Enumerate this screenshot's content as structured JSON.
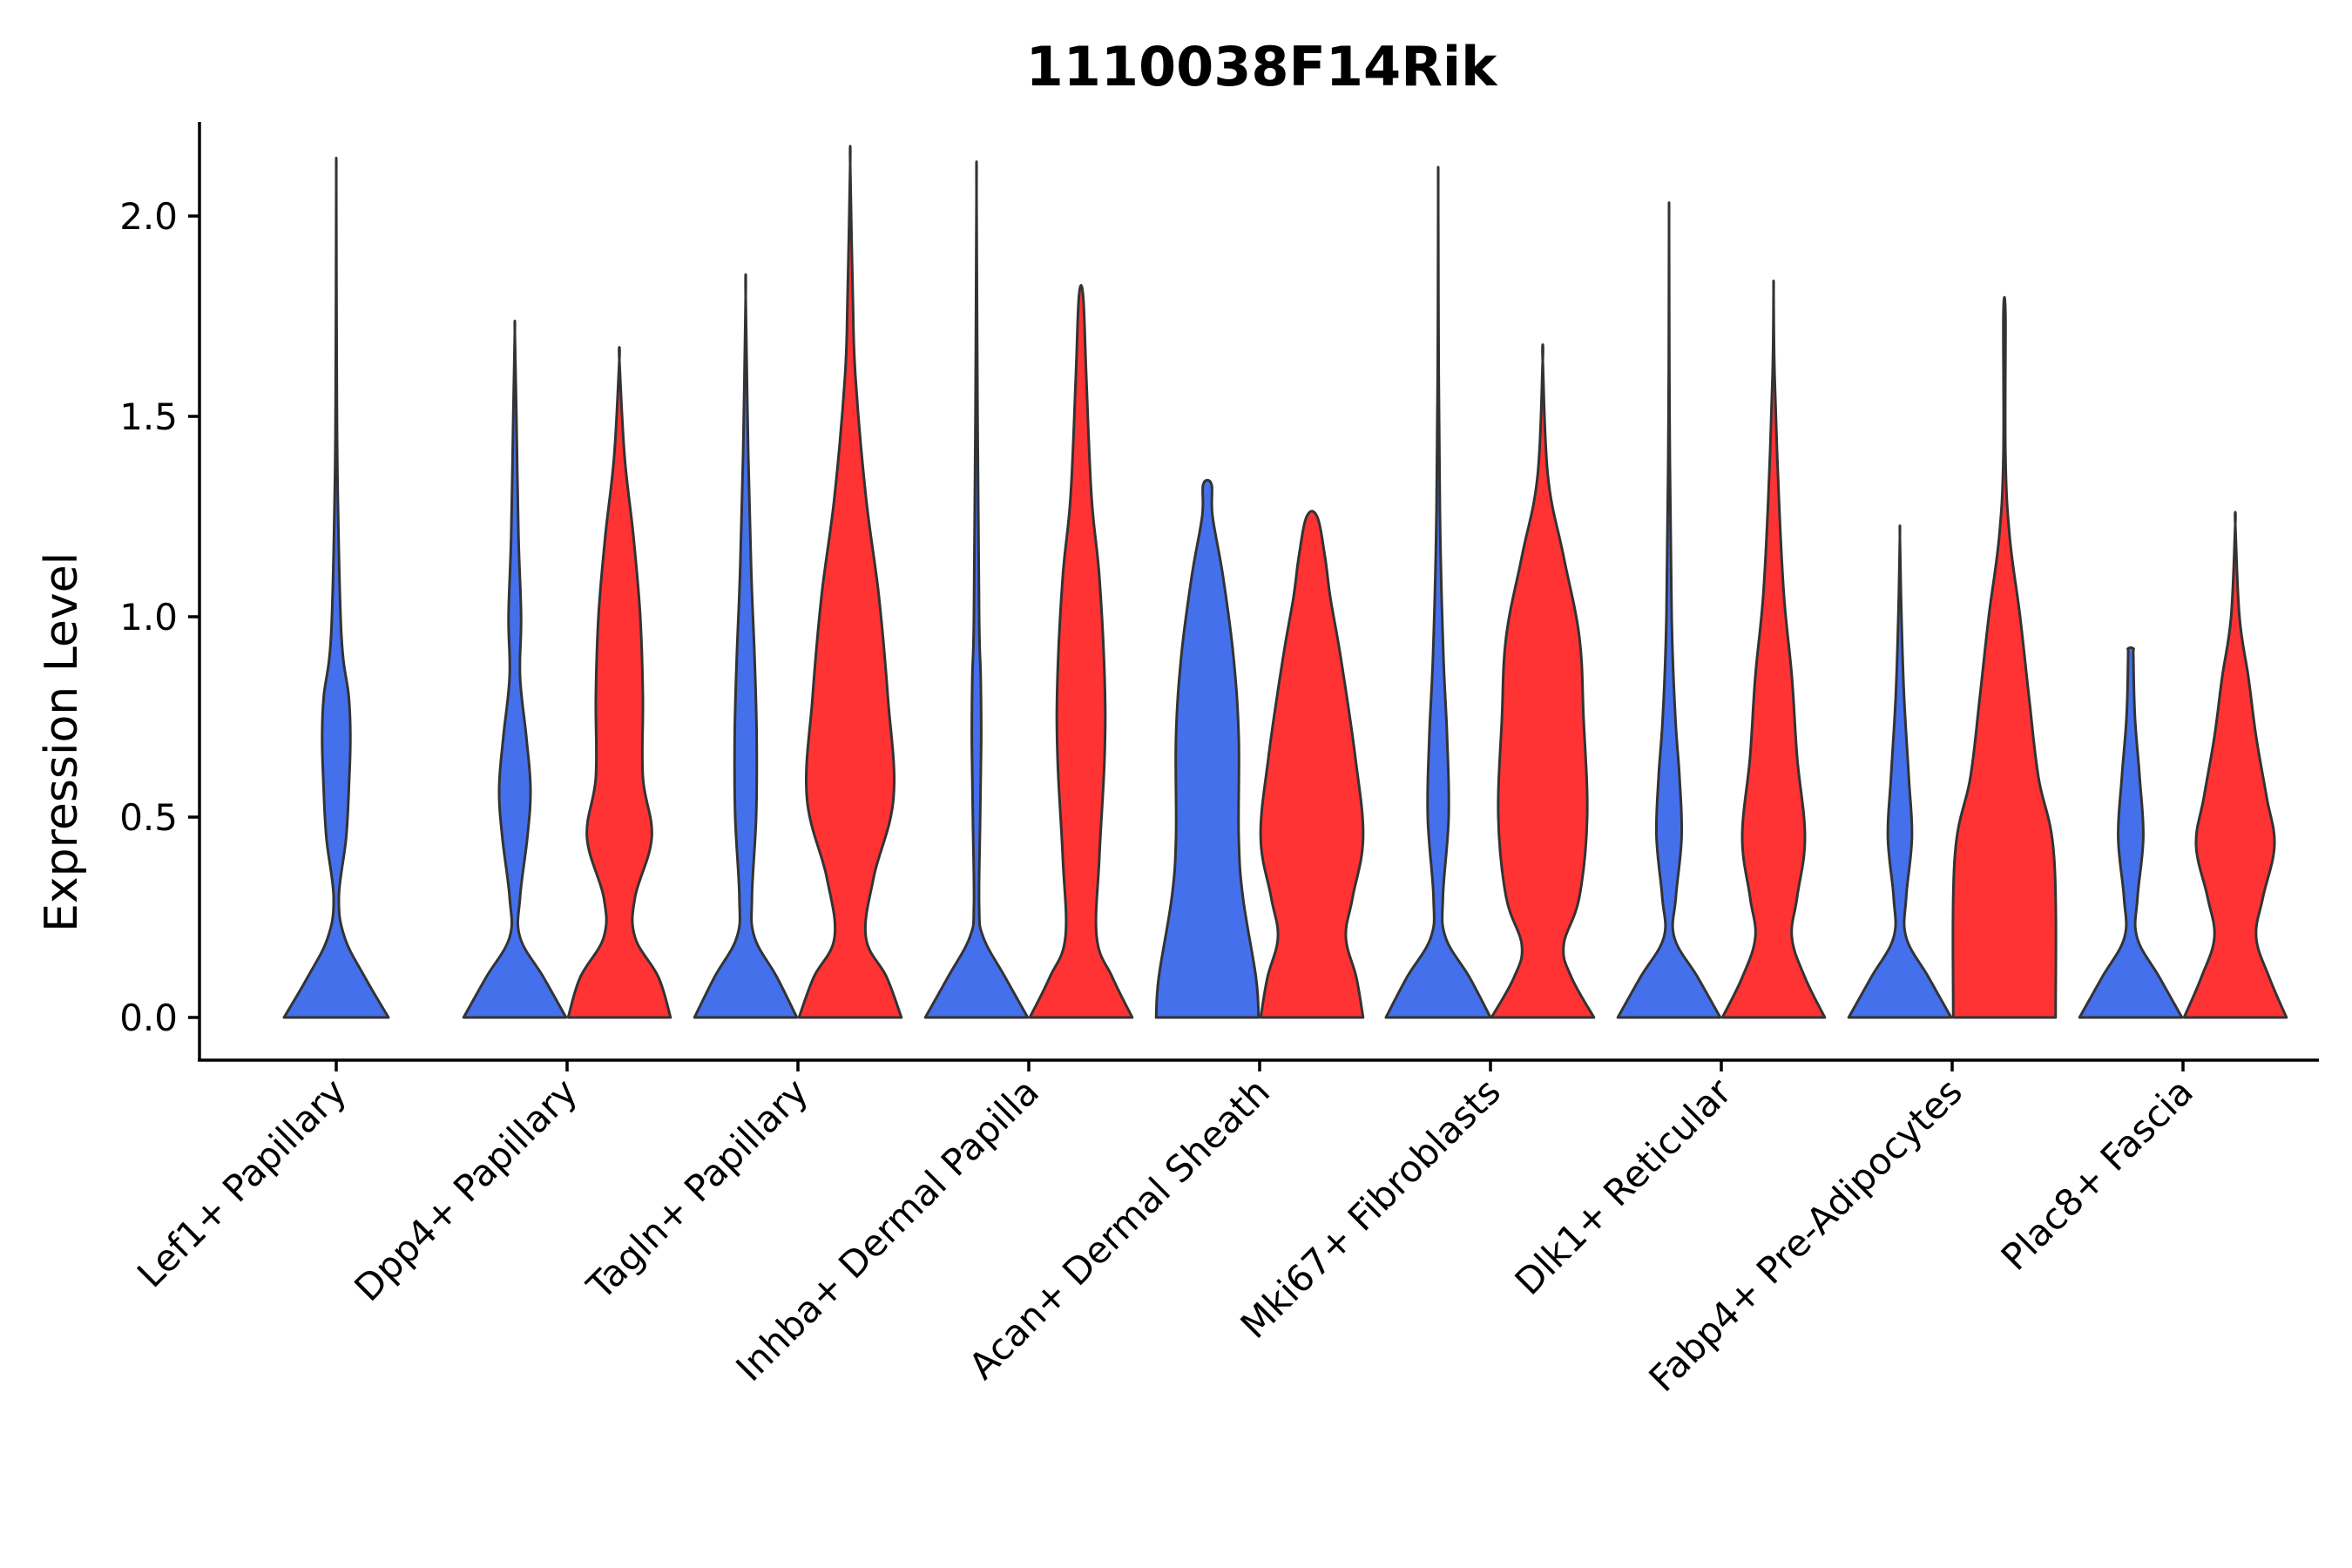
{
  "chart_data": {
    "type": "violin",
    "title": "1110038F14Rik",
    "xlabel": "",
    "ylabel": "Expression Level",
    "ylim": [
      -0.11,
      2.24
    ],
    "yticks": [
      "0.0",
      "0.5",
      "1.0",
      "1.5",
      "2.0"
    ],
    "grid": false,
    "legend": "none",
    "categories": [
      "Lef1+ Papillary",
      "Dpp4+ Papillary",
      "Tagln+ Papillary",
      "Inhba+ Dermal Papilla",
      "Acan+ Dermal Sheath",
      "Mki67+ Fibroblasts",
      "Dlk1+ Reticular",
      "Fabp4+ Pre-Adipocytes",
      "Plac8+ Fascia"
    ],
    "series": [
      {
        "color": "#4570EB",
        "violins": [
          {
            "category": "Lef1+ Papillary",
            "max": 2.08,
            "profile": [
              [
                0,
                1.0
              ],
              [
                0.1,
                0.55
              ],
              [
                0.2,
                0.16
              ],
              [
                0.3,
                0.05
              ],
              [
                0.45,
                0.19
              ],
              [
                0.6,
                0.25
              ],
              [
                0.7,
                0.27
              ],
              [
                0.8,
                0.24
              ],
              [
                0.95,
                0.1
              ],
              [
                1.3,
                0.03
              ],
              [
                1.6,
                0.01
              ],
              [
                2.08,
                0.0
              ]
            ]
          },
          {
            "category": "Dpp4+ Papillary",
            "max": 1.71,
            "profile": [
              [
                0,
                0.98
              ],
              [
                0.1,
                0.55
              ],
              [
                0.2,
                0.1
              ],
              [
                0.3,
                0.1
              ],
              [
                0.45,
                0.24
              ],
              [
                0.57,
                0.3
              ],
              [
                0.7,
                0.22
              ],
              [
                0.85,
                0.1
              ],
              [
                1.0,
                0.12
              ],
              [
                1.2,
                0.07
              ],
              [
                1.5,
                0.03
              ],
              [
                1.71,
                0.0
              ]
            ]
          },
          {
            "category": "Tagln+ Papillary",
            "max": 1.8,
            "profile": [
              [
                0,
                0.98
              ],
              [
                0.1,
                0.6
              ],
              [
                0.2,
                0.17
              ],
              [
                0.3,
                0.12
              ],
              [
                0.5,
                0.2
              ],
              [
                0.7,
                0.21
              ],
              [
                0.9,
                0.17
              ],
              [
                1.1,
                0.11
              ],
              [
                1.4,
                0.05
              ],
              [
                1.8,
                0.0
              ]
            ]
          },
          {
            "category": "Inhba+ Dermal Papilla",
            "max": 2.06,
            "profile": [
              [
                0,
                0.98
              ],
              [
                0.1,
                0.55
              ],
              [
                0.2,
                0.13
              ],
              [
                0.28,
                0.05
              ],
              [
                0.5,
                0.07
              ],
              [
                0.7,
                0.09
              ],
              [
                0.85,
                0.08
              ],
              [
                1.0,
                0.05
              ],
              [
                1.5,
                0.02
              ],
              [
                2.06,
                0.0
              ]
            ]
          },
          {
            "category": "Acan+ Dermal Sheath",
            "max": 1.33,
            "profile": [
              [
                0,
                0.98
              ],
              [
                0.1,
                0.93
              ],
              [
                0.3,
                0.68
              ],
              [
                0.45,
                0.6
              ],
              [
                0.7,
                0.6
              ],
              [
                0.9,
                0.5
              ],
              [
                1.1,
                0.3
              ],
              [
                1.25,
                0.1
              ],
              [
                1.33,
                0.08
              ]
            ]
          },
          {
            "category": "Mki67+ Fibroblasts",
            "max": 2.06,
            "profile": [
              [
                0,
                1.0
              ],
              [
                0.1,
                0.6
              ],
              [
                0.2,
                0.14
              ],
              [
                0.3,
                0.09
              ],
              [
                0.5,
                0.2
              ],
              [
                0.7,
                0.17
              ],
              [
                0.9,
                0.1
              ],
              [
                1.2,
                0.04
              ],
              [
                1.6,
                0.01
              ],
              [
                2.06,
                0.0
              ]
            ]
          },
          {
            "category": "Dlk1+ Reticular",
            "max": 1.97,
            "profile": [
              [
                0,
                0.98
              ],
              [
                0.1,
                0.55
              ],
              [
                0.2,
                0.1
              ],
              [
                0.3,
                0.13
              ],
              [
                0.45,
                0.24
              ],
              [
                0.6,
                0.2
              ],
              [
                0.75,
                0.12
              ],
              [
                1.0,
                0.05
              ],
              [
                1.5,
                0.01
              ],
              [
                1.97,
                0.0
              ]
            ]
          },
          {
            "category": "Fabp4+ Pre-Adipocytes",
            "max": 1.2,
            "profile": [
              [
                0,
                0.98
              ],
              [
                0.1,
                0.55
              ],
              [
                0.2,
                0.12
              ],
              [
                0.3,
                0.12
              ],
              [
                0.45,
                0.23
              ],
              [
                0.6,
                0.17
              ],
              [
                0.8,
                0.08
              ],
              [
                1.0,
                0.03
              ],
              [
                1.2,
                0.0
              ]
            ]
          },
          {
            "category": "Plac8+ Fascia",
            "max": 0.92,
            "profile": [
              [
                0,
                0.98
              ],
              [
                0.1,
                0.55
              ],
              [
                0.2,
                0.12
              ],
              [
                0.3,
                0.13
              ],
              [
                0.45,
                0.24
              ],
              [
                0.6,
                0.17
              ],
              [
                0.75,
                0.08
              ],
              [
                0.9,
                0.05
              ],
              [
                0.92,
                0.05
              ]
            ]
          }
        ]
      },
      {
        "color": "#FF3333",
        "violins": [
          {
            "category": "Dpp4+ Papillary",
            "max": 1.64,
            "profile": [
              [
                0,
                0.98
              ],
              [
                0.1,
                0.75
              ],
              [
                0.2,
                0.3
              ],
              [
                0.3,
                0.3
              ],
              [
                0.45,
                0.62
              ],
              [
                0.6,
                0.45
              ],
              [
                0.8,
                0.45
              ],
              [
                1.0,
                0.4
              ],
              [
                1.2,
                0.27
              ],
              [
                1.4,
                0.1
              ],
              [
                1.64,
                0.0
              ]
            ]
          },
          {
            "category": "Tagln+ Papillary",
            "max": 2.13,
            "profile": [
              [
                0,
                0.98
              ],
              [
                0.1,
                0.7
              ],
              [
                0.2,
                0.3
              ],
              [
                0.35,
                0.45
              ],
              [
                0.55,
                0.83
              ],
              [
                0.8,
                0.72
              ],
              [
                1.05,
                0.55
              ],
              [
                1.3,
                0.3
              ],
              [
                1.6,
                0.1
              ],
              [
                1.8,
                0.05
              ],
              [
                2.13,
                0.0
              ]
            ]
          },
          {
            "category": "Inhba+ Dermal Papilla",
            "max": 1.8,
            "profile": [
              [
                0,
                0.98
              ],
              [
                0.1,
                0.6
              ],
              [
                0.2,
                0.3
              ],
              [
                0.4,
                0.35
              ],
              [
                0.65,
                0.45
              ],
              [
                0.85,
                0.45
              ],
              [
                1.1,
                0.35
              ],
              [
                1.3,
                0.2
              ],
              [
                1.6,
                0.1
              ],
              [
                1.8,
                0.04
              ]
            ]
          },
          {
            "category": "Acan+ Dermal Sheath",
            "max": 1.25,
            "profile": [
              [
                0,
                0.98
              ],
              [
                0.1,
                0.85
              ],
              [
                0.2,
                0.65
              ],
              [
                0.3,
                0.78
              ],
              [
                0.45,
                0.98
              ],
              [
                0.65,
                0.83
              ],
              [
                0.9,
                0.55
              ],
              [
                1.05,
                0.35
              ],
              [
                1.15,
                0.25
              ],
              [
                1.25,
                0.1
              ]
            ]
          },
          {
            "category": "Mki67+ Fibroblasts",
            "max": 1.64,
            "profile": [
              [
                0,
                0.98
              ],
              [
                0.1,
                0.55
              ],
              [
                0.18,
                0.4
              ],
              [
                0.3,
                0.7
              ],
              [
                0.5,
                0.85
              ],
              [
                0.75,
                0.78
              ],
              [
                0.95,
                0.7
              ],
              [
                1.15,
                0.4
              ],
              [
                1.35,
                0.1
              ],
              [
                1.64,
                0.0
              ]
            ]
          },
          {
            "category": "Dlk1+ Reticular",
            "max": 1.81,
            "profile": [
              [
                0,
                0.98
              ],
              [
                0.1,
                0.6
              ],
              [
                0.2,
                0.35
              ],
              [
                0.3,
                0.45
              ],
              [
                0.45,
                0.6
              ],
              [
                0.65,
                0.45
              ],
              [
                0.85,
                0.35
              ],
              [
                1.05,
                0.2
              ],
              [
                1.3,
                0.1
              ],
              [
                1.6,
                0.02
              ],
              [
                1.81,
                0.0
              ]
            ]
          },
          {
            "category": "Fabp4+ Pre-Adipocytes",
            "max": 1.75,
            "profile": [
              [
                0,
                0.98
              ],
              [
                0.4,
                0.95
              ],
              [
                0.6,
                0.65
              ],
              [
                0.8,
                0.47
              ],
              [
                1.0,
                0.3
              ],
              [
                1.2,
                0.1
              ],
              [
                1.4,
                0.02
              ],
              [
                1.75,
                0.02
              ]
            ]
          },
          {
            "category": "Plac8+ Fascia",
            "max": 1.23,
            "profile": [
              [
                0,
                0.98
              ],
              [
                0.1,
                0.65
              ],
              [
                0.2,
                0.4
              ],
              [
                0.3,
                0.53
              ],
              [
                0.43,
                0.75
              ],
              [
                0.55,
                0.6
              ],
              [
                0.7,
                0.4
              ],
              [
                0.85,
                0.25
              ],
              [
                1.0,
                0.08
              ],
              [
                1.23,
                0.0
              ]
            ]
          }
        ]
      }
    ]
  }
}
